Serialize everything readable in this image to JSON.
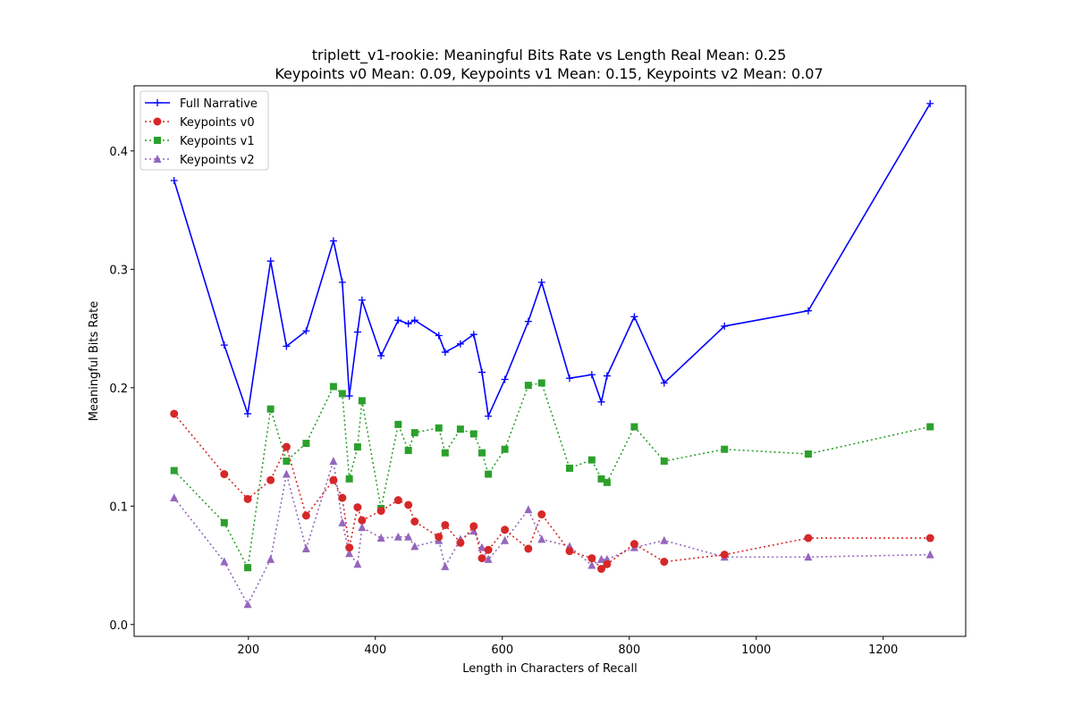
{
  "chart_data": {
    "type": "line",
    "title_lines": [
      "triplett_v1-rookie: Meaningful Bits Rate vs Length Real Mean: 0.25",
      "Keypoints v0 Mean: 0.09, Keypoints v1 Mean: 0.15, Keypoints v2 Mean: 0.07"
    ],
    "xlabel": "Length in Characters of Recall",
    "ylabel": "Meaningful Bits Rate",
    "xlim": [
      20,
      1330
    ],
    "ylim": [
      -0.01,
      0.455
    ],
    "xticks": [
      200,
      400,
      600,
      800,
      1000,
      1200
    ],
    "yticks": [
      0.0,
      0.1,
      0.2,
      0.3,
      0.4
    ],
    "ytick_labels": [
      "0.0",
      "0.1",
      "0.2",
      "0.3",
      "0.4"
    ],
    "grid": false,
    "legend_position": "top-left",
    "x": [
      83,
      162,
      199,
      235,
      260,
      291,
      334,
      348,
      359,
      372,
      379,
      409,
      436,
      452,
      462,
      500,
      510,
      534,
      555,
      568,
      578,
      604,
      641,
      662,
      706,
      741,
      756,
      765,
      808,
      855,
      950,
      1082,
      1274
    ],
    "series": [
      {
        "name": "Full Narrative",
        "color": "#0000ff",
        "marker": "plus",
        "linestyle": "solid",
        "values": [
          0.375,
          0.236,
          0.178,
          0.307,
          0.235,
          0.248,
          0.324,
          0.289,
          0.193,
          0.247,
          0.274,
          0.227,
          0.257,
          0.254,
          0.257,
          0.244,
          0.23,
          0.237,
          0.245,
          0.213,
          0.176,
          0.207,
          0.256,
          0.289,
          0.208,
          0.211,
          0.188,
          0.21,
          0.26,
          0.204,
          0.252,
          0.265,
          0.44
        ]
      },
      {
        "name": "Keypoints v0",
        "color": "#d62728",
        "marker": "circle",
        "linestyle": "dotted",
        "values": [
          0.178,
          0.127,
          0.106,
          0.122,
          0.15,
          0.092,
          0.122,
          0.107,
          0.065,
          0.099,
          0.088,
          0.096,
          0.105,
          0.101,
          0.087,
          0.074,
          0.084,
          0.069,
          0.083,
          0.056,
          0.063,
          0.08,
          0.064,
          0.093,
          0.062,
          0.056,
          0.047,
          0.051,
          0.068,
          0.053,
          0.059,
          0.073,
          0.073
        ]
      },
      {
        "name": "Keypoints v1",
        "color": "#2ca02c",
        "marker": "square",
        "linestyle": "dotted",
        "values": [
          0.13,
          0.086,
          0.048,
          0.182,
          0.138,
          0.153,
          0.201,
          0.195,
          0.123,
          0.15,
          0.189,
          0.098,
          0.169,
          0.147,
          0.162,
          0.166,
          0.145,
          0.165,
          0.161,
          0.145,
          0.127,
          0.148,
          0.202,
          0.204,
          0.132,
          0.139,
          0.123,
          0.12,
          0.167,
          0.138,
          0.148,
          0.144,
          0.167
        ]
      },
      {
        "name": "Keypoints v2",
        "color": "#9467bd",
        "marker": "triangle",
        "linestyle": "dotted",
        "values": [
          0.107,
          0.053,
          0.017,
          0.055,
          0.127,
          0.064,
          0.138,
          0.086,
          0.06,
          0.051,
          0.082,
          0.073,
          0.074,
          0.074,
          0.066,
          0.071,
          0.049,
          0.072,
          0.079,
          0.065,
          0.055,
          0.071,
          0.097,
          0.072,
          0.066,
          0.05,
          0.055,
          0.055,
          0.065,
          0.071,
          0.057,
          0.057,
          0.059
        ]
      }
    ]
  }
}
